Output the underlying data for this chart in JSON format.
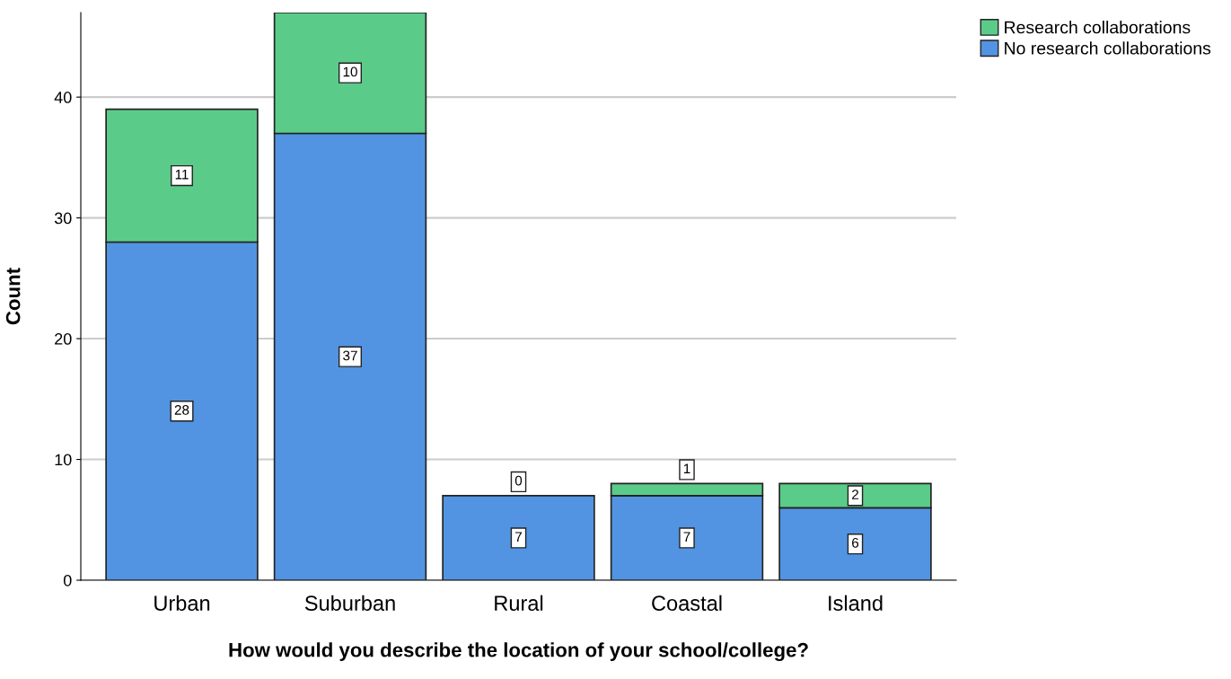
{
  "chart_data": {
    "type": "bar",
    "stacked": true,
    "xlabel": "How would you describe the location of your school/college?",
    "ylabel": "Count",
    "categories": [
      "Urban",
      "Suburban",
      "Rural",
      "Coastal",
      "Island"
    ],
    "series": [
      {
        "name": "No research collaborations",
        "color": "#5294e2",
        "values": [
          28,
          37,
          7,
          7,
          6
        ]
      },
      {
        "name": "Research collaborations",
        "color": "#5bcb8a",
        "values": [
          11,
          10,
          0,
          1,
          2
        ]
      }
    ],
    "ylim": [
      0,
      47
    ],
    "yticks": [
      0,
      10,
      20,
      30,
      40
    ],
    "grid": "y",
    "legend": "top right",
    "data_labels": true
  }
}
